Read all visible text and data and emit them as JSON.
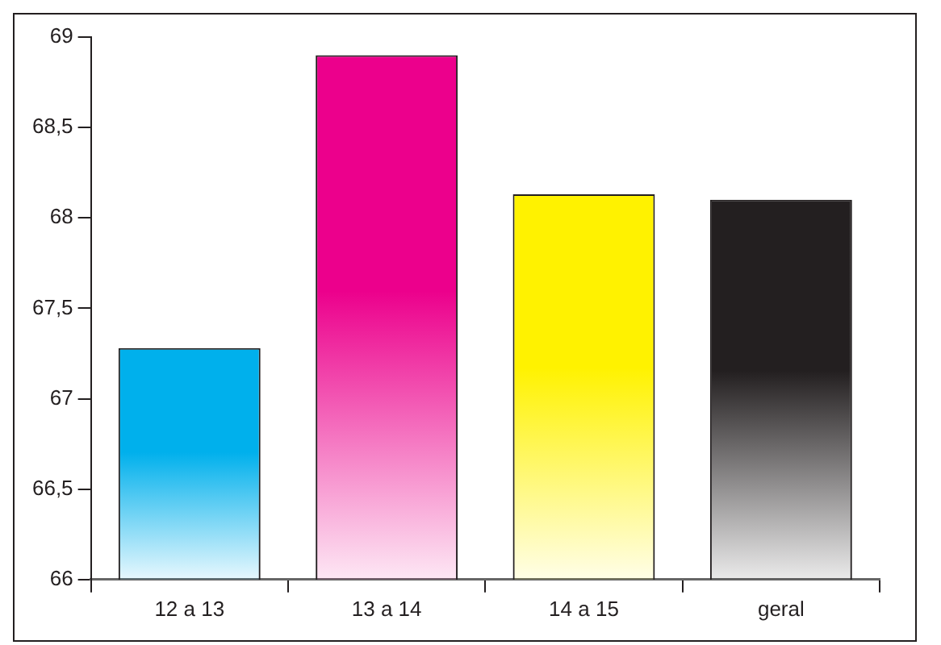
{
  "chart_data": {
    "type": "bar",
    "categories": [
      "12 a 13",
      "13 a 14",
      "14 a 15",
      "geral"
    ],
    "values": [
      67.28,
      68.9,
      68.13,
      68.1
    ],
    "colors": [
      "#00b0ec",
      "#ec008c",
      "#fff200",
      "#231f20"
    ],
    "ylim": [
      66,
      69
    ],
    "yticks": [
      66,
      {
        "value": 66.5,
        "label": "66,5"
      },
      67,
      {
        "value": 67.5,
        "label": "67,5"
      },
      68,
      {
        "value": 68.5,
        "label": "68,5"
      },
      69
    ],
    "grid": false
  }
}
